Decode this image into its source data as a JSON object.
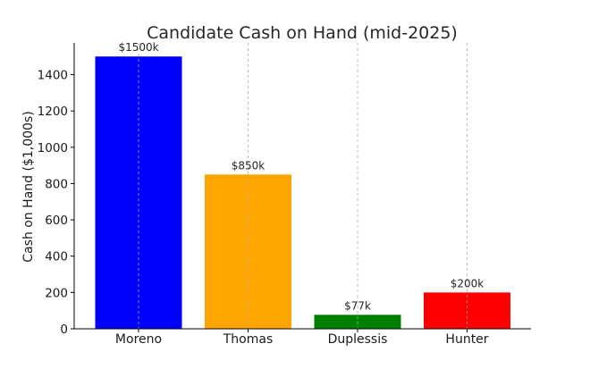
{
  "chart_data": {
    "type": "bar",
    "title": "Candidate Cash on Hand (mid-2025)",
    "xlabel": "",
    "ylabel": "Cash on Hand ($1,000s)",
    "categories": [
      "Moreno",
      "Thomas",
      "Duplessis",
      "Hunter"
    ],
    "values": [
      1500,
      850,
      77,
      200
    ],
    "data_labels": [
      "$1500k",
      "$850k",
      "$77k",
      "$200k"
    ],
    "colors": [
      "#0000ff",
      "#ffa500",
      "#008000",
      "#ff0000"
    ],
    "ylim": [
      0,
      1575
    ],
    "yticks": [
      0,
      200,
      400,
      600,
      800,
      1000,
      1200,
      1400
    ],
    "grid": "x-dashed"
  }
}
